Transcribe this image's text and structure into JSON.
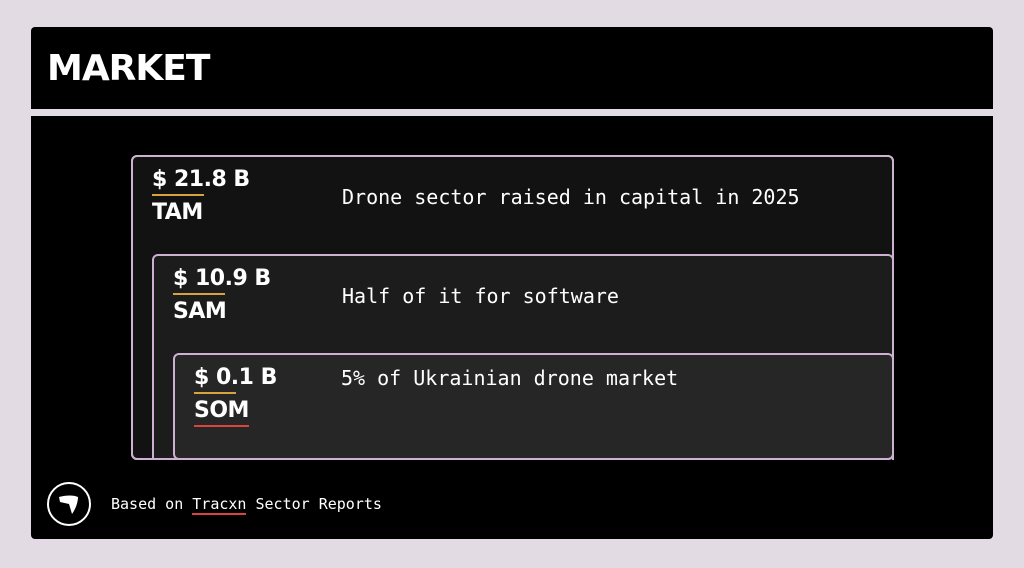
{
  "header": {
    "title": "MARKET"
  },
  "tiers": [
    {
      "value": "$ 21.8 B",
      "label": "TAM",
      "description": "Drone sector raised in capital in 2025"
    },
    {
      "value": "$ 10.9 B",
      "label": "SAM",
      "description": "Half of it for software"
    },
    {
      "value": "$ 0.1 B",
      "label": "SOM",
      "description": "5% of Ukrainian drone market"
    }
  ],
  "footer": {
    "prefix": "Based on ",
    "link": "Tracxn",
    "suffix": " Sector Reports"
  },
  "colors": {
    "background": "#e2dbe3",
    "panel": "#000000",
    "border": "#cdb0d2",
    "value_underline": "#d9a33b",
    "link_underline": "#d9443b"
  },
  "icons": {
    "logo": "arrow-logo-icon"
  }
}
